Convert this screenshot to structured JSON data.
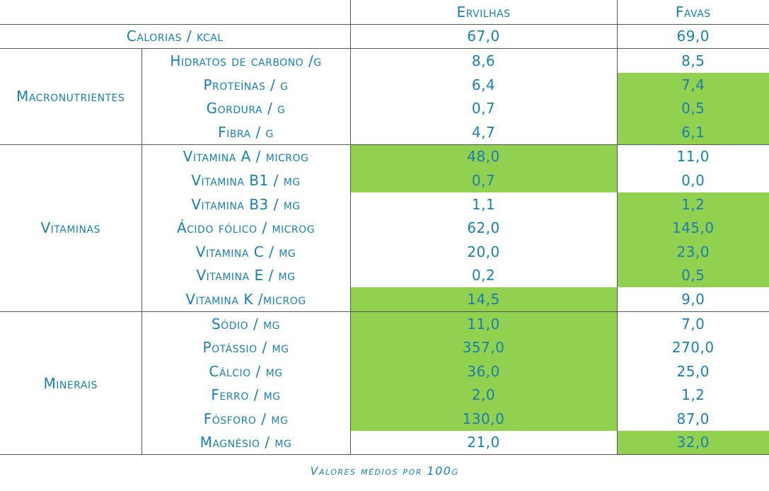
{
  "header": {
    "col1": "Ervilhas",
    "col2": "Favas"
  },
  "calorias": {
    "label": "Calorias / kcal",
    "ervilhas": "67,0",
    "favas": "69,0"
  },
  "colors": {
    "highlight": "#92d050",
    "text": "#1a7fb0",
    "border": "#555555"
  },
  "groups": {
    "macro": {
      "name": "Macronutrientes",
      "rows": [
        {
          "label": "Hidratos de carbono /g",
          "ervilhas": "8,6",
          "favas": "8,5"
        },
        {
          "label": "Proteínas / g",
          "ervilhas": "6,4",
          "favas": "7,4"
        },
        {
          "label": "Gordura / g",
          "ervilhas": "0,7",
          "favas": "0,5"
        },
        {
          "label": "Fibra / g",
          "ervilhas": "4,7",
          "favas": "6,1"
        }
      ]
    },
    "vit": {
      "name": "Vitaminas",
      "rows": [
        {
          "label": "Vitamina A / microg",
          "ervilhas": "48,0",
          "favas": "11,0"
        },
        {
          "label": "Vitamina B1 / mg",
          "ervilhas": "0,7",
          "favas": "0,0"
        },
        {
          "label": "Vitamina B3 / mg",
          "ervilhas": "1,1",
          "favas": "1,2"
        },
        {
          "label": "Ácido fólico / microg",
          "ervilhas": "62,0",
          "favas": "145,0"
        },
        {
          "label": "Vitamina C / mg",
          "ervilhas": "20,0",
          "favas": "23,0"
        },
        {
          "label": "Vitamina E / mg",
          "ervilhas": "0,2",
          "favas": "0,5"
        },
        {
          "label": "Vitamina K /microg",
          "ervilhas": "14,5",
          "favas": "9,0"
        }
      ]
    },
    "min": {
      "name": "Minerais",
      "rows": [
        {
          "label": "Sódio / mg",
          "ervilhas": "11,0",
          "favas": "7,0"
        },
        {
          "label": "Potássio / mg",
          "ervilhas": "357,0",
          "favas": "270,0"
        },
        {
          "label": "Cálcio / mg",
          "ervilhas": "36,0",
          "favas": "25,0"
        },
        {
          "label": "Ferro / mg",
          "ervilhas": "2,0",
          "favas": "1,2"
        },
        {
          "label": "Fósforo / mg",
          "ervilhas": "130,0",
          "favas": "87,0"
        },
        {
          "label": "Magnésio / mg",
          "ervilhas": "21,0",
          "favas": "32,0"
        }
      ]
    }
  },
  "footer": "Valores médios por 100g"
}
